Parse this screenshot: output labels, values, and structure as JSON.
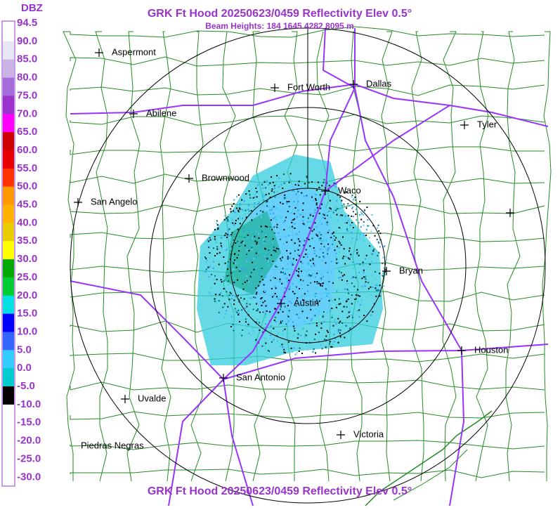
{
  "header": {
    "title": "GRK Ft Hood 20250623/0459 Reflectivity Elev 0.5°",
    "subtitle": "Beam Heights: 184 1645 4282 8095 m"
  },
  "footer": {
    "title": "GRK Ft Hood 20250623/0459 Reflectivity Elev 0.5°"
  },
  "legend": {
    "unit": "DBZ",
    "labels": [
      "94.5",
      "90.0",
      "85.0",
      "80.0",
      "75.0",
      "70.0",
      "65.0",
      "60.0",
      "55.0",
      "50.0",
      "45.0",
      "40.0",
      "35.0",
      "30.0",
      "25.0",
      "20.0",
      "15.0",
      "10.0",
      "5.0",
      "0.0",
      "-5.0",
      "-10.0",
      "-15.0",
      "-20.0",
      "-25.0",
      "-30.0"
    ]
  },
  "cities": [
    "Aspermont",
    "Fort Worth",
    "Dallas",
    "Abilene",
    "Tyler",
    "Brownwood",
    "Waco",
    "San Angelo",
    "Bryan",
    "Austin",
    "Houston",
    "San Antonio",
    "Uvalde",
    "Victoria",
    "Piedras Negras"
  ]
}
